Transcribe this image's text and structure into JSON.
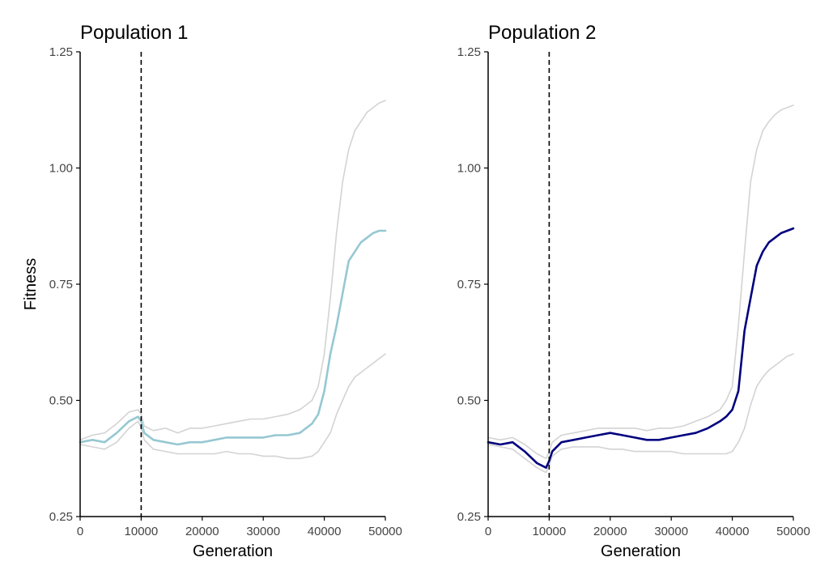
{
  "chart_data": [
    {
      "type": "line",
      "title": "Population 1",
      "xlabel": "Generation",
      "ylabel": "Fitness",
      "xlim": [
        0,
        50000
      ],
      "ylim": [
        0.25,
        1.25
      ],
      "xticks": [
        0,
        10000,
        20000,
        30000,
        40000,
        50000
      ],
      "xtick_labels": [
        "0",
        "10000",
        "20000",
        "30000",
        "40000",
        "50000"
      ],
      "yticks": [
        0.25,
        0.5,
        0.75,
        1.0,
        1.25
      ],
      "ytick_labels": [
        "0.25",
        "0.50",
        "0.75",
        "1.00",
        "1.25"
      ],
      "vline": 10000,
      "grid": false,
      "x": [
        0,
        2000,
        4000,
        6000,
        8000,
        9500,
        10000,
        10500,
        12000,
        14000,
        16000,
        18000,
        20000,
        22000,
        24000,
        26000,
        28000,
        30000,
        32000,
        34000,
        36000,
        38000,
        39000,
        40000,
        41000,
        42000,
        43000,
        44000,
        45000,
        46000,
        47000,
        48000,
        49000,
        50000
      ],
      "series": [
        {
          "color": "#96c8d2",
          "values": [
            0.41,
            0.415,
            0.41,
            0.43,
            0.455,
            0.465,
            0.455,
            0.43,
            0.415,
            0.41,
            0.405,
            0.41,
            0.41,
            0.415,
            0.42,
            0.42,
            0.42,
            0.42,
            0.425,
            0.425,
            0.43,
            0.45,
            0.47,
            0.52,
            0.6,
            0.66,
            0.73,
            0.8,
            0.82,
            0.84,
            0.85,
            0.86,
            0.865,
            0.865
          ]
        },
        {
          "color": "#d3d3d3",
          "values": [
            0.415,
            0.425,
            0.43,
            0.45,
            0.475,
            0.48,
            0.47,
            0.445,
            0.435,
            0.44,
            0.43,
            0.44,
            0.44,
            0.445,
            0.45,
            0.455,
            0.46,
            0.46,
            0.465,
            0.47,
            0.48,
            0.5,
            0.53,
            0.6,
            0.72,
            0.86,
            0.97,
            1.04,
            1.08,
            1.1,
            1.12,
            1.13,
            1.14,
            1.145
          ]
        },
        {
          "color": "#d3d3d3",
          "values": [
            0.405,
            0.4,
            0.395,
            0.41,
            0.44,
            0.455,
            0.44,
            0.415,
            0.395,
            0.39,
            0.385,
            0.385,
            0.385,
            0.385,
            0.39,
            0.385,
            0.385,
            0.38,
            0.38,
            0.375,
            0.375,
            0.38,
            0.39,
            0.41,
            0.43,
            0.47,
            0.5,
            0.53,
            0.55,
            0.56,
            0.57,
            0.58,
            0.59,
            0.6
          ]
        }
      ]
    },
    {
      "type": "line",
      "title": "Population 2",
      "xlabel": "Generation",
      "ylabel": "",
      "xlim": [
        0,
        50000
      ],
      "ylim": [
        0.25,
        1.25
      ],
      "xticks": [
        0,
        10000,
        20000,
        30000,
        40000,
        50000
      ],
      "xtick_labels": [
        "0",
        "10000",
        "20000",
        "30000",
        "40000",
        "50000"
      ],
      "yticks": [
        0.25,
        0.5,
        0.75,
        1.0,
        1.25
      ],
      "ytick_labels": [
        "0.25",
        "0.50",
        "0.75",
        "1.00",
        "1.25"
      ],
      "vline": 10000,
      "grid": false,
      "x": [
        0,
        2000,
        4000,
        6000,
        8000,
        9500,
        10000,
        10500,
        12000,
        14000,
        16000,
        18000,
        20000,
        22000,
        24000,
        26000,
        28000,
        30000,
        32000,
        34000,
        36000,
        38000,
        39000,
        40000,
        41000,
        42000,
        43000,
        44000,
        45000,
        46000,
        47000,
        48000,
        49000,
        50000
      ],
      "series": [
        {
          "color": "#00007f",
          "values": [
            0.41,
            0.405,
            0.41,
            0.39,
            0.365,
            0.355,
            0.37,
            0.39,
            0.41,
            0.415,
            0.42,
            0.425,
            0.43,
            0.425,
            0.42,
            0.415,
            0.415,
            0.42,
            0.425,
            0.43,
            0.44,
            0.455,
            0.465,
            0.48,
            0.52,
            0.65,
            0.72,
            0.79,
            0.82,
            0.84,
            0.85,
            0.86,
            0.865,
            0.87
          ]
        },
        {
          "color": "#d3d3d3",
          "values": [
            0.42,
            0.415,
            0.42,
            0.405,
            0.385,
            0.375,
            0.39,
            0.41,
            0.425,
            0.43,
            0.435,
            0.44,
            0.44,
            0.44,
            0.44,
            0.435,
            0.44,
            0.44,
            0.445,
            0.455,
            0.465,
            0.48,
            0.5,
            0.53,
            0.66,
            0.82,
            0.97,
            1.04,
            1.08,
            1.1,
            1.115,
            1.125,
            1.13,
            1.135
          ]
        },
        {
          "color": "#d3d3d3",
          "values": [
            0.405,
            0.4,
            0.395,
            0.375,
            0.355,
            0.345,
            0.36,
            0.38,
            0.395,
            0.4,
            0.4,
            0.4,
            0.395,
            0.395,
            0.39,
            0.39,
            0.39,
            0.39,
            0.385,
            0.385,
            0.385,
            0.385,
            0.385,
            0.39,
            0.41,
            0.44,
            0.49,
            0.53,
            0.55,
            0.565,
            0.575,
            0.585,
            0.595,
            0.6
          ]
        }
      ]
    }
  ]
}
